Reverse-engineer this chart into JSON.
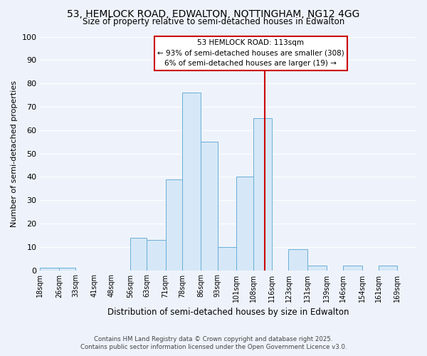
{
  "title": "53, HEMLOCK ROAD, EDWALTON, NOTTINGHAM, NG12 4GG",
  "subtitle": "Size of property relative to semi-detached houses in Edwalton",
  "xlabel": "Distribution of semi-detached houses by size in Edwalton",
  "ylabel": "Number of semi-detached properties",
  "bin_labels": [
    "18sqm",
    "26sqm",
    "33sqm",
    "41sqm",
    "48sqm",
    "56sqm",
    "63sqm",
    "71sqm",
    "78sqm",
    "86sqm",
    "93sqm",
    "101sqm",
    "108sqm",
    "116sqm",
    "123sqm",
    "131sqm",
    "139sqm",
    "146sqm",
    "154sqm",
    "161sqm",
    "169sqm"
  ],
  "bin_edges": [
    18,
    26,
    33,
    41,
    48,
    56,
    63,
    71,
    78,
    86,
    93,
    101,
    108,
    116,
    123,
    131,
    139,
    146,
    154,
    161,
    169,
    177
  ],
  "bar_heights": [
    1,
    1,
    0,
    0,
    0,
    14,
    13,
    39,
    76,
    55,
    10,
    40,
    65,
    0,
    9,
    2,
    0,
    2,
    0,
    2,
    0
  ],
  "bar_color": "#d6e8f7",
  "bar_edge_color": "#6aaed6",
  "vline_x": 113,
  "vline_color": "#cc0000",
  "ylim": [
    0,
    100
  ],
  "yticks": [
    0,
    10,
    20,
    30,
    40,
    50,
    60,
    70,
    80,
    90,
    100
  ],
  "bg_color": "#eef3fb",
  "grid_color": "#ffffff",
  "annotation_title": "53 HEMLOCK ROAD: 113sqm",
  "annotation_line1": "← 93% of semi-detached houses are smaller (308)",
  "annotation_line2": "6% of semi-detached houses are larger (19) →",
  "annotation_box_facecolor": "#ffffff",
  "annotation_box_edgecolor": "#cc0000",
  "footnote1": "Contains HM Land Registry data © Crown copyright and database right 2025.",
  "footnote2": "Contains public sector information licensed under the Open Government Licence v3.0."
}
